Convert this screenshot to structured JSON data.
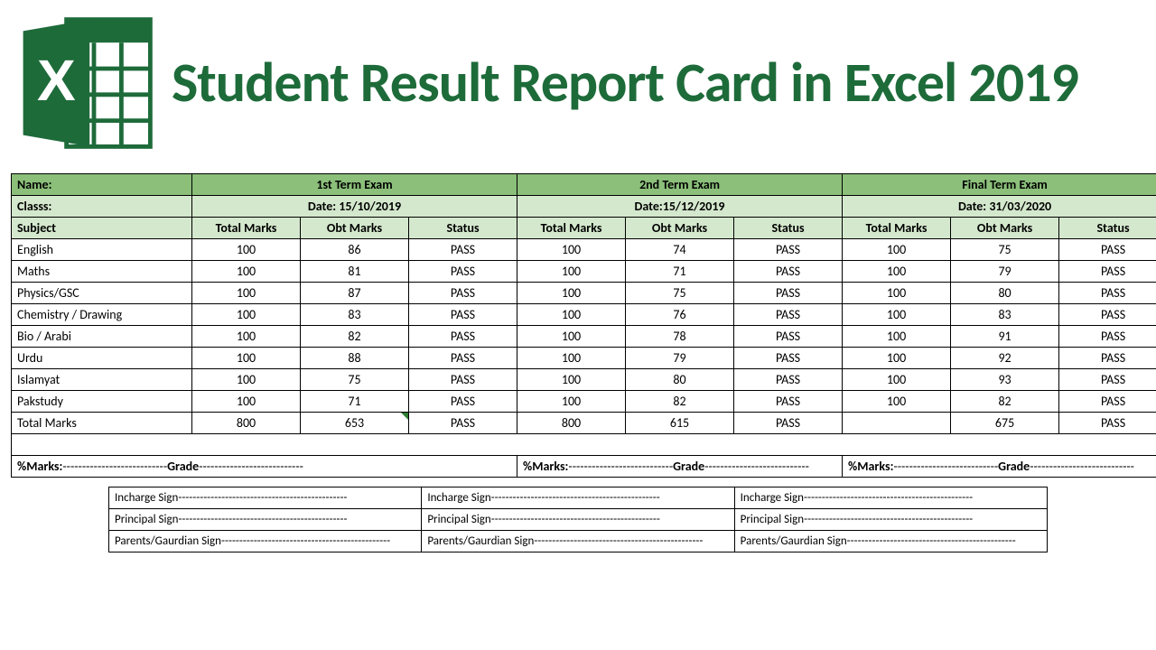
{
  "title_line": "Student Result Report Card in Excel 2019",
  "logo": {
    "brand_color": "#1e6b3a",
    "letter": "X"
  },
  "colors": {
    "header_dark": "#8bbf7a",
    "header_light": "#d4e8cd",
    "border": "#000000",
    "title": "#1e6b3a",
    "background": "#ffffff"
  },
  "labels": {
    "name": "Name:",
    "class": "Classs:",
    "subject": "Subject",
    "total_marks": "Total Marks",
    "obt_marks": "Obt Marks",
    "status": "Status",
    "total_row": "Total Marks",
    "pct_marks": "%Marks:",
    "grade": "Grade",
    "incharge": "Incharge Sign",
    "principal": "Principal Sign",
    "parents": "Parents/Gaurdian Sign"
  },
  "terms": [
    {
      "title": "1st Term Exam",
      "date": "Date: 15/10/2019"
    },
    {
      "title": "2nd Term Exam",
      "date": "Date:15/12/2019"
    },
    {
      "title": "Final Term Exam",
      "date": "Date: 31/03/2020"
    }
  ],
  "subjects": [
    "English",
    "Maths",
    "Physics/GSC",
    "Chemistry / Drawing",
    "Bio / Arabi",
    "Urdu",
    "Islamyat",
    "Pakstudy"
  ],
  "data": {
    "term1": {
      "total": [
        100,
        100,
        100,
        100,
        100,
        100,
        100,
        100
      ],
      "obt": [
        86,
        81,
        87,
        83,
        82,
        88,
        75,
        71
      ],
      "status": [
        "PASS",
        "PASS",
        "PASS",
        "PASS",
        "PASS",
        "PASS",
        "PASS",
        "PASS"
      ],
      "sum_total": 800,
      "sum_obt": 653,
      "sum_status": "PASS"
    },
    "term2": {
      "total": [
        100,
        100,
        100,
        100,
        100,
        100,
        100,
        100
      ],
      "obt": [
        74,
        71,
        75,
        76,
        78,
        79,
        80,
        82
      ],
      "status": [
        "PASS",
        "PASS",
        "PASS",
        "PASS",
        "PASS",
        "PASS",
        "PASS",
        "PASS"
      ],
      "sum_total": 800,
      "sum_obt": 615,
      "sum_status": "PASS"
    },
    "term3": {
      "total": [
        100,
        100,
        100,
        100,
        100,
        100,
        100,
        100
      ],
      "obt": [
        75,
        79,
        80,
        83,
        91,
        92,
        93,
        82
      ],
      "status": [
        "PASS",
        "PASS",
        "PASS",
        "PASS",
        "PASS",
        "PASS",
        "PASS",
        "PASS"
      ],
      "sum_total": "",
      "sum_obt": 675,
      "sum_status": "PASS"
    }
  },
  "dash_short": "---------------------------",
  "dash_long": "-----------------------------------------------"
}
